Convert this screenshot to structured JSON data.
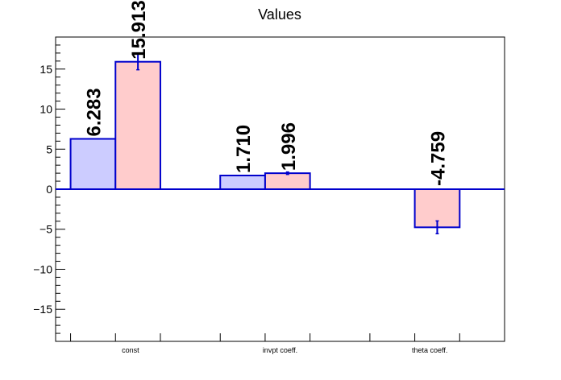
{
  "chart_data": {
    "type": "bar",
    "title": "Values",
    "xlabel": "",
    "ylabel": "",
    "categories": [
      "const",
      "invpt coeff.",
      "theta coeff."
    ],
    "ylim": [
      -19,
      19
    ],
    "y_ticks": [
      15,
      10,
      5,
      0,
      -5,
      -10,
      -15
    ],
    "grid": false,
    "series": [
      {
        "color": "#ccccff",
        "edge_color": "#0000cc",
        "values": [
          6.283,
          1.71,
          null
        ],
        "errors": [
          null,
          null,
          null
        ],
        "labels": [
          "6.283",
          "1.710",
          null
        ]
      },
      {
        "color": "#ffcccc",
        "edge_color": "#0000cc",
        "values": [
          15.913,
          1.996,
          -4.759
        ],
        "errors": [
          1.0,
          0.15,
          0.8
        ],
        "labels": [
          "15.913",
          "1.996",
          "-4.759"
        ]
      }
    ]
  }
}
